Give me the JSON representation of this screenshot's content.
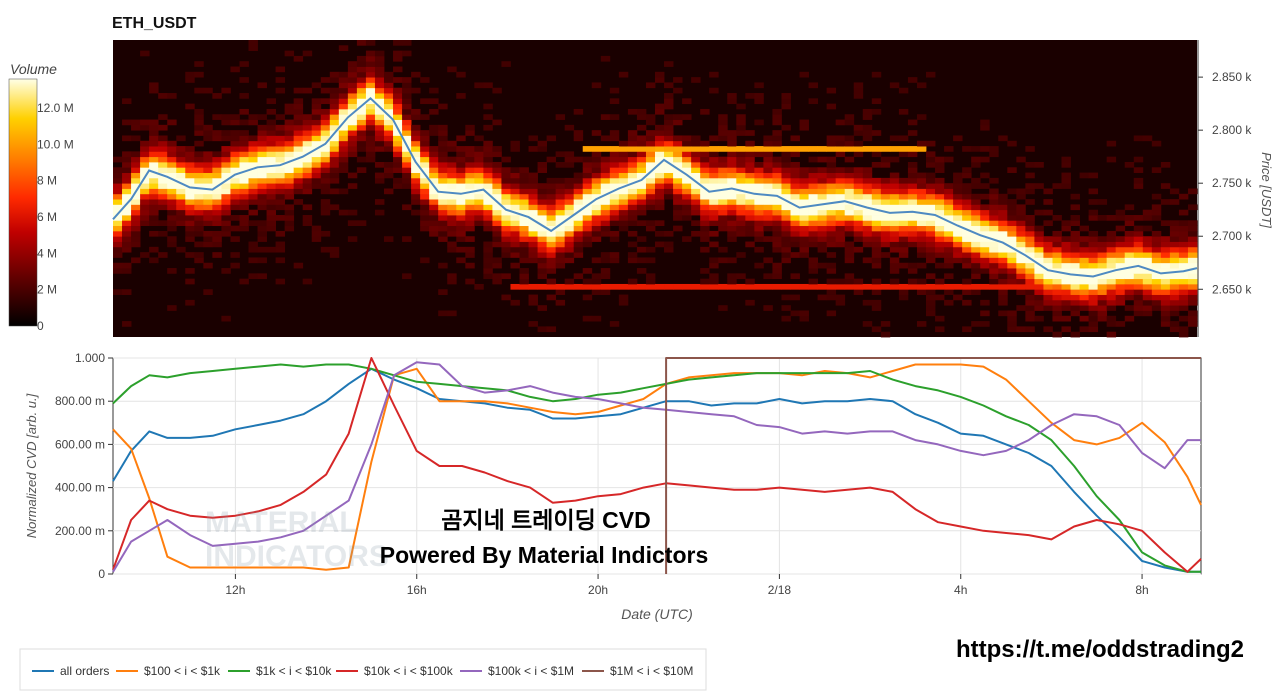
{
  "title": "ETH_USDT",
  "colorbar": {
    "title": "Volume",
    "ticks": [
      "0",
      "2 M",
      "4 M",
      "6 M",
      "8 M",
      "10.0 M",
      "12.0 M"
    ],
    "tick_values": [
      0,
      2,
      4,
      6,
      8,
      10,
      12
    ],
    "max": 13.6
  },
  "overlay": {
    "line1": "곰지네 트레이딩 CVD",
    "line2": "Powered By Material Indictors",
    "watermark1": "MATERIAL",
    "watermark2": "INDICATORS",
    "link": "https://t.me/oddstrading2"
  },
  "legend": [
    {
      "label": "all orders",
      "color": "#1f77b4"
    },
    {
      "label": "$100 < i < $1k",
      "color": "#ff7f0e"
    },
    {
      "label": "$1k < i < $10k",
      "color": "#2ca02c"
    },
    {
      "label": "$10k < i < $100k",
      "color": "#d62728"
    },
    {
      "label": "$100k < i < $1M",
      "color": "#9467bd"
    },
    {
      "label": "$1M < i < $10M",
      "color": "#8c564b"
    }
  ],
  "chart_data": [
    {
      "type": "heatmap",
      "title": "ETH_USDT",
      "ylabel": "Price [USDT]",
      "y_ticks": [
        "2.650 k",
        "2.700 k",
        "2.750 k",
        "2.800 k",
        "2.850 k"
      ],
      "y_tick_values": [
        2650,
        2700,
        2750,
        2800,
        2850
      ],
      "ylim": [
        2605,
        2885
      ],
      "x_range_hours": [
        9.3,
        33.3
      ],
      "price_line": {
        "x_hours": [
          9.3,
          9.7,
          10.1,
          10.5,
          11,
          11.5,
          12,
          12.5,
          13,
          13.5,
          14,
          14.5,
          15,
          15.5,
          16,
          16.5,
          17,
          17.5,
          18,
          18.5,
          19,
          19.5,
          20,
          20.5,
          21,
          21.5,
          22,
          22.5,
          23,
          23.5,
          24,
          24.5,
          25,
          25.5,
          26,
          26.5,
          27,
          27.5,
          28,
          28.5,
          29,
          29.5,
          30,
          30.5,
          31,
          31.5,
          32,
          32.5,
          33,
          33.3
        ],
        "y": [
          2716,
          2735,
          2762,
          2756,
          2746,
          2744,
          2758,
          2765,
          2767,
          2775,
          2787,
          2812,
          2830,
          2810,
          2770,
          2742,
          2740,
          2744,
          2725,
          2718,
          2705,
          2720,
          2735,
          2745,
          2753,
          2772,
          2758,
          2742,
          2745,
          2740,
          2738,
          2727,
          2730,
          2733,
          2727,
          2722,
          2723,
          2720,
          2710,
          2701,
          2694,
          2682,
          2668,
          2664,
          2662,
          2668,
          2672,
          2665,
          2667,
          2670
        ]
      },
      "price_color": "#4e8ac2"
    },
    {
      "type": "line",
      "xlabel": "Date (UTC)",
      "ylabel": "Normalized CVD [arb. u.]",
      "x_ticks": [
        "12h",
        "16h",
        "20h",
        "2/18",
        "4h",
        "8h"
      ],
      "x_tick_hours": [
        12,
        16,
        20,
        24,
        28,
        32
      ],
      "xlim": [
        9.3,
        33.3
      ],
      "y_ticks": [
        "0",
        "200.00 m",
        "400.00 m",
        "600.00 m",
        "800.00 m",
        "1.000"
      ],
      "y_tick_values": [
        0,
        0.2,
        0.4,
        0.6,
        0.8,
        1.0
      ],
      "ylim": [
        0,
        1.0
      ],
      "x": [
        9.3,
        9.7,
        10.1,
        10.5,
        11,
        11.5,
        12,
        12.5,
        13,
        13.5,
        14,
        14.5,
        15,
        15.5,
        16,
        16.5,
        17,
        17.5,
        18,
        18.5,
        19,
        19.5,
        20,
        20.5,
        21,
        21.5,
        22,
        22.5,
        23,
        23.5,
        24,
        24.5,
        25,
        25.5,
        26,
        26.5,
        27,
        27.5,
        28,
        28.5,
        29,
        29.5,
        30,
        30.5,
        31,
        31.5,
        32,
        32.5,
        33,
        33.3
      ],
      "series": [
        {
          "name": "all orders",
          "values": [
            0.43,
            0.57,
            0.66,
            0.63,
            0.63,
            0.64,
            0.67,
            0.69,
            0.71,
            0.74,
            0.8,
            0.88,
            0.95,
            0.9,
            0.86,
            0.81,
            0.8,
            0.79,
            0.77,
            0.76,
            0.72,
            0.72,
            0.73,
            0.74,
            0.77,
            0.8,
            0.8,
            0.78,
            0.79,
            0.79,
            0.81,
            0.79,
            0.8,
            0.8,
            0.81,
            0.8,
            0.74,
            0.7,
            0.65,
            0.64,
            0.6,
            0.56,
            0.5,
            0.38,
            0.27,
            0.17,
            0.06,
            0.03,
            0.01,
            0.01
          ]
        },
        {
          "name": "$100 < i < $1k",
          "values": [
            0.67,
            0.58,
            0.35,
            0.08,
            0.03,
            0.03,
            0.03,
            0.03,
            0.03,
            0.03,
            0.02,
            0.03,
            0.52,
            0.92,
            0.95,
            0.8,
            0.8,
            0.8,
            0.79,
            0.77,
            0.75,
            0.74,
            0.75,
            0.78,
            0.81,
            0.88,
            0.91,
            0.92,
            0.93,
            0.93,
            0.93,
            0.92,
            0.94,
            0.93,
            0.91,
            0.94,
            0.97,
            0.97,
            0.97,
            0.96,
            0.9,
            0.8,
            0.7,
            0.62,
            0.6,
            0.63,
            0.7,
            0.61,
            0.45,
            0.32
          ]
        },
        {
          "name": "$1k < i < $10k",
          "values": [
            0.79,
            0.87,
            0.92,
            0.91,
            0.93,
            0.94,
            0.95,
            0.96,
            0.97,
            0.96,
            0.97,
            0.97,
            0.95,
            0.92,
            0.89,
            0.88,
            0.87,
            0.86,
            0.85,
            0.82,
            0.8,
            0.81,
            0.83,
            0.84,
            0.86,
            0.88,
            0.9,
            0.91,
            0.92,
            0.93,
            0.93,
            0.93,
            0.93,
            0.93,
            0.94,
            0.9,
            0.87,
            0.85,
            0.82,
            0.78,
            0.73,
            0.69,
            0.62,
            0.5,
            0.36,
            0.25,
            0.1,
            0.04,
            0.01,
            0.01
          ]
        },
        {
          "name": "$10k < i < $100k",
          "values": [
            0.02,
            0.25,
            0.34,
            0.3,
            0.27,
            0.26,
            0.27,
            0.29,
            0.32,
            0.38,
            0.46,
            0.65,
            1.0,
            0.78,
            0.57,
            0.5,
            0.5,
            0.47,
            0.43,
            0.4,
            0.33,
            0.34,
            0.36,
            0.37,
            0.4,
            0.42,
            0.41,
            0.4,
            0.39,
            0.39,
            0.4,
            0.39,
            0.38,
            0.39,
            0.4,
            0.38,
            0.3,
            0.24,
            0.22,
            0.2,
            0.19,
            0.18,
            0.16,
            0.22,
            0.25,
            0.23,
            0.2,
            0.1,
            0.01,
            0.07
          ]
        },
        {
          "name": "$100k < i < $1M",
          "values": [
            0.01,
            0.15,
            0.2,
            0.25,
            0.18,
            0.13,
            0.14,
            0.15,
            0.17,
            0.2,
            0.27,
            0.34,
            0.6,
            0.92,
            0.98,
            0.97,
            0.87,
            0.84,
            0.85,
            0.87,
            0.84,
            0.82,
            0.81,
            0.79,
            0.77,
            0.76,
            0.75,
            0.74,
            0.73,
            0.69,
            0.68,
            0.65,
            0.66,
            0.65,
            0.66,
            0.66,
            0.62,
            0.6,
            0.57,
            0.55,
            0.57,
            0.62,
            0.69,
            0.74,
            0.73,
            0.69,
            0.56,
            0.49,
            0.62,
            0.62
          ]
        },
        {
          "name": "$1M < i < $10M",
          "values": [
            null,
            null,
            null,
            null,
            null,
            null,
            null,
            null,
            null,
            null,
            null,
            null,
            null,
            null,
            null,
            null,
            null,
            null,
            null,
            null,
            null,
            null,
            null,
            null,
            null,
            1.0,
            1.0,
            1.0,
            1.0,
            1.0,
            1.0,
            1.0,
            1.0,
            1.0,
            1.0,
            1.0,
            1.0,
            1.0,
            1.0,
            1.0,
            1.0,
            1.0,
            1.0,
            1.0,
            1.0,
            1.0,
            1.0,
            1.0,
            1.0,
            1.0
          ]
        }
      ]
    }
  ]
}
